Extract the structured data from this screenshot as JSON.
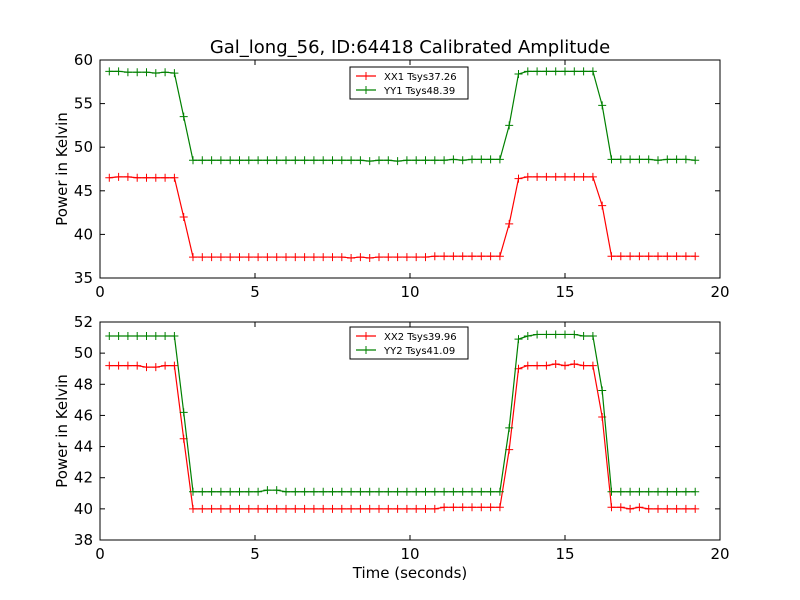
{
  "figure": {
    "title": "Gal_long_56, ID:64418 Calibrated Amplitude"
  },
  "chart_data": [
    {
      "type": "line",
      "title": "Gal_long_56, ID:64418 Calibrated Amplitude",
      "xlabel": "",
      "ylabel": "Power in Kelvin",
      "xlim": [
        0,
        20
      ],
      "ylim": [
        35,
        60
      ],
      "xticks": [
        0,
        5,
        10,
        15,
        20
      ],
      "yticks": [
        35,
        40,
        45,
        50,
        55,
        60
      ],
      "legend_position": "top-center",
      "grid": false,
      "x": [
        0.3,
        0.6,
        0.9,
        1.2,
        1.5,
        1.8,
        2.1,
        2.4,
        2.7,
        3.0,
        3.3,
        3.6,
        3.9,
        4.2,
        4.5,
        4.8,
        5.1,
        5.4,
        5.7,
        6.0,
        6.3,
        6.6,
        6.9,
        7.2,
        7.5,
        7.8,
        8.1,
        8.4,
        8.7,
        9.0,
        9.3,
        9.6,
        9.9,
        10.2,
        10.5,
        10.8,
        11.1,
        11.4,
        11.7,
        12.0,
        12.3,
        12.6,
        12.9,
        13.2,
        13.5,
        13.8,
        14.1,
        14.4,
        14.7,
        15.0,
        15.3,
        15.6,
        15.9,
        16.2,
        16.5,
        16.8,
        17.1,
        17.4,
        17.7,
        18.0,
        18.3,
        18.6,
        18.9,
        19.2
      ],
      "series": [
        {
          "name": "XX1 Tsys37.26",
          "color": "#ff0000",
          "values": [
            46.5,
            46.6,
            46.6,
            46.5,
            46.5,
            46.5,
            46.5,
            46.5,
            42.0,
            37.4,
            37.4,
            37.4,
            37.4,
            37.4,
            37.4,
            37.4,
            37.4,
            37.4,
            37.4,
            37.4,
            37.4,
            37.4,
            37.4,
            37.4,
            37.4,
            37.4,
            37.3,
            37.4,
            37.3,
            37.4,
            37.4,
            37.4,
            37.4,
            37.4,
            37.4,
            37.5,
            37.5,
            37.5,
            37.5,
            37.5,
            37.5,
            37.5,
            37.5,
            41.2,
            46.4,
            46.6,
            46.6,
            46.6,
            46.6,
            46.6,
            46.6,
            46.6,
            46.6,
            43.3,
            37.5,
            37.5,
            37.5,
            37.5,
            37.5,
            37.5,
            37.5,
            37.5,
            37.5,
            37.5
          ]
        },
        {
          "name": "YY1 Tsys48.39",
          "color": "#008000",
          "values": [
            58.7,
            58.7,
            58.6,
            58.6,
            58.6,
            58.5,
            58.6,
            58.5,
            53.5,
            48.5,
            48.5,
            48.5,
            48.5,
            48.5,
            48.5,
            48.5,
            48.5,
            48.5,
            48.5,
            48.5,
            48.5,
            48.5,
            48.5,
            48.5,
            48.5,
            48.5,
            48.5,
            48.5,
            48.4,
            48.5,
            48.5,
            48.4,
            48.5,
            48.5,
            48.5,
            48.5,
            48.5,
            48.6,
            48.5,
            48.6,
            48.6,
            48.6,
            48.6,
            52.5,
            58.4,
            58.7,
            58.7,
            58.7,
            58.7,
            58.7,
            58.7,
            58.7,
            58.7,
            54.8,
            48.6,
            48.6,
            48.6,
            48.6,
            48.6,
            48.5,
            48.6,
            48.6,
            48.6,
            48.5
          ]
        }
      ]
    },
    {
      "type": "line",
      "title": "",
      "xlabel": "Time (seconds)",
      "ylabel": "Power in Kelvin",
      "xlim": [
        0,
        20
      ],
      "ylim": [
        38,
        52
      ],
      "xticks": [
        0,
        5,
        10,
        15,
        20
      ],
      "yticks": [
        38,
        40,
        42,
        44,
        46,
        48,
        50,
        52
      ],
      "legend_position": "top-center",
      "grid": false,
      "x": [
        0.3,
        0.6,
        0.9,
        1.2,
        1.5,
        1.8,
        2.1,
        2.4,
        2.7,
        3.0,
        3.3,
        3.6,
        3.9,
        4.2,
        4.5,
        4.8,
        5.1,
        5.4,
        5.7,
        6.0,
        6.3,
        6.6,
        6.9,
        7.2,
        7.5,
        7.8,
        8.1,
        8.4,
        8.7,
        9.0,
        9.3,
        9.6,
        9.9,
        10.2,
        10.5,
        10.8,
        11.1,
        11.4,
        11.7,
        12.0,
        12.3,
        12.6,
        12.9,
        13.2,
        13.5,
        13.8,
        14.1,
        14.4,
        14.7,
        15.0,
        15.3,
        15.6,
        15.9,
        16.2,
        16.5,
        16.8,
        17.1,
        17.4,
        17.7,
        18.0,
        18.3,
        18.6,
        18.9,
        19.2
      ],
      "series": [
        {
          "name": "XX2 Tsys39.96",
          "color": "#ff0000",
          "values": [
            49.2,
            49.2,
            49.2,
            49.2,
            49.1,
            49.1,
            49.2,
            49.2,
            44.5,
            40.0,
            40.0,
            40.0,
            40.0,
            40.0,
            40.0,
            40.0,
            40.0,
            40.0,
            40.0,
            40.0,
            40.0,
            40.0,
            40.0,
            40.0,
            40.0,
            40.0,
            40.0,
            40.0,
            40.0,
            40.0,
            40.0,
            40.0,
            40.0,
            40.0,
            40.0,
            40.0,
            40.1,
            40.1,
            40.1,
            40.1,
            40.1,
            40.1,
            40.1,
            43.8,
            49.0,
            49.2,
            49.2,
            49.2,
            49.3,
            49.2,
            49.3,
            49.2,
            49.2,
            45.9,
            40.1,
            40.1,
            40.0,
            40.1,
            40.0,
            40.0,
            40.0,
            40.0,
            40.0,
            40.0
          ]
        },
        {
          "name": "YY2 Tsys41.09",
          "color": "#008000",
          "values": [
            51.1,
            51.1,
            51.1,
            51.1,
            51.1,
            51.1,
            51.1,
            51.1,
            46.2,
            41.1,
            41.1,
            41.1,
            41.1,
            41.1,
            41.1,
            41.1,
            41.1,
            41.2,
            41.2,
            41.1,
            41.1,
            41.1,
            41.1,
            41.1,
            41.1,
            41.1,
            41.1,
            41.1,
            41.1,
            41.1,
            41.1,
            41.1,
            41.1,
            41.1,
            41.1,
            41.1,
            41.1,
            41.1,
            41.1,
            41.1,
            41.1,
            41.1,
            41.1,
            45.2,
            50.9,
            51.1,
            51.2,
            51.2,
            51.2,
            51.2,
            51.2,
            51.1,
            51.1,
            47.6,
            41.1,
            41.1,
            41.1,
            41.1,
            41.1,
            41.1,
            41.1,
            41.1,
            41.1,
            41.1
          ]
        }
      ]
    }
  ]
}
